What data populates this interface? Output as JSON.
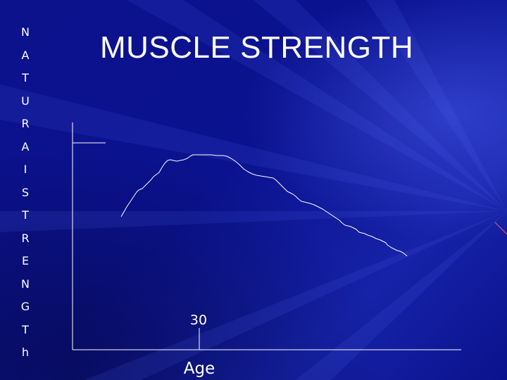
{
  "slide": {
    "title": "MUSCLE STRENGTH",
    "vertical_label_letters": [
      "N",
      "A",
      "T",
      "U",
      "R",
      "A",
      "I",
      "S",
      "T",
      "R",
      "E",
      "N",
      "G",
      "T",
      "h"
    ],
    "background_color": "#0a0f86",
    "text_color": "#ffffff"
  },
  "diagram": {
    "x_axis_label": "Age",
    "peak_marker_label": "30"
  }
}
